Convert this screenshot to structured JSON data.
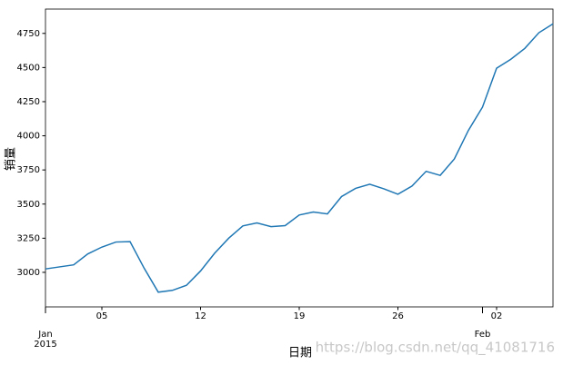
{
  "chart_data": {
    "type": "line",
    "xlabel": "日期",
    "ylabel": "销量",
    "watermark": "https://blog.csdn.net/qq_41081716",
    "x": [
      "2015-01-01",
      "2015-01-02",
      "2015-01-03",
      "2015-01-04",
      "2015-01-05",
      "2015-01-06",
      "2015-01-07",
      "2015-01-08",
      "2015-01-09",
      "2015-01-10",
      "2015-01-11",
      "2015-01-12",
      "2015-01-13",
      "2015-01-14",
      "2015-01-15",
      "2015-01-16",
      "2015-01-17",
      "2015-01-18",
      "2015-01-19",
      "2015-01-20",
      "2015-01-21",
      "2015-01-22",
      "2015-01-23",
      "2015-01-24",
      "2015-01-25",
      "2015-01-26",
      "2015-01-27",
      "2015-01-28",
      "2015-01-29",
      "2015-01-30",
      "2015-01-31",
      "2015-02-01",
      "2015-02-02",
      "2015-02-03",
      "2015-02-04",
      "2015-02-05",
      "2015-02-06"
    ],
    "values": [
      3025,
      3040,
      3055,
      3135,
      3185,
      3222,
      3225,
      3030,
      2855,
      2868,
      2905,
      3010,
      3140,
      3250,
      3340,
      3362,
      3335,
      3342,
      3420,
      3442,
      3428,
      3555,
      3615,
      3645,
      3612,
      3572,
      3632,
      3740,
      3710,
      3830,
      4040,
      4210,
      4495,
      4560,
      4640,
      4755,
      4820
    ],
    "color": "#1f77b4",
    "xlim": [
      "2015-01-01",
      "2015-02-06"
    ],
    "xticks": [
      {
        "value": "2015-01-05",
        "label": "05"
      },
      {
        "value": "2015-01-12",
        "label": "12"
      },
      {
        "value": "2015-01-19",
        "label": "19"
      },
      {
        "value": "2015-01-26",
        "label": "26"
      },
      {
        "value": "2015-02-02",
        "label": "02"
      }
    ],
    "xmajorticks": [
      {
        "value": "2015-01-01",
        "label": "Jan",
        "sublabel": "2015"
      },
      {
        "value": "2015-02-01",
        "label": "Feb"
      }
    ],
    "ylim": [
      2747,
      4928
    ],
    "yticks": [
      3000,
      3250,
      3500,
      3750,
      4000,
      4250,
      4500,
      4750
    ]
  }
}
